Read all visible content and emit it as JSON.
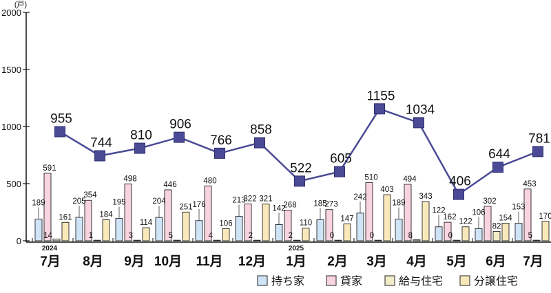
{
  "chart_data": {
    "type": "bar",
    "unit": "(戸)",
    "ylim": [
      0,
      2000
    ],
    "yticks": [
      0,
      500,
      1000,
      1500,
      2000
    ],
    "categories": [
      "7月",
      "8月",
      "9月",
      "10月",
      "11月",
      "12月",
      "1月",
      "2月",
      "3月",
      "4月",
      "5月",
      "6月",
      "7月"
    ],
    "years": [
      {
        "label": "2024",
        "index": 0
      },
      {
        "label": "2025",
        "index": 6
      }
    ],
    "series": [
      {
        "name": "持ち家",
        "color": "#cfe4f7",
        "values": [
          189,
          205,
          195,
          204,
          176,
          213,
          142,
          185,
          242,
          189,
          122,
          106,
          153
        ]
      },
      {
        "name": "貸家",
        "color": "#f8d3e0",
        "values": [
          591,
          354,
          498,
          446,
          480,
          322,
          268,
          273,
          510,
          494,
          162,
          302,
          453
        ]
      },
      {
        "name": "給与住宅",
        "color": "#f2ecc9",
        "values": [
          14,
          1,
          3,
          5,
          4,
          2,
          2,
          0,
          0,
          8,
          0,
          82,
          5
        ]
      },
      {
        "name": "分譲住宅",
        "color": "#f9e8b9",
        "values": [
          161,
          184,
          114,
          251,
          106,
          321,
          110,
          147,
          403,
          343,
          122,
          154,
          170
        ]
      }
    ],
    "total": {
      "type": "line",
      "color": "#4a4a96",
      "values": [
        955,
        744,
        810,
        906,
        766,
        858,
        522,
        605,
        1155,
        1034,
        406,
        644,
        781
      ]
    },
    "legend_position": "bottom-right"
  }
}
